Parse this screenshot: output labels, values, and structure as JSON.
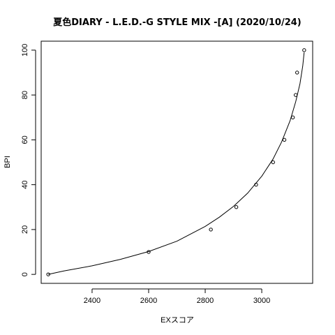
{
  "chart_data": {
    "type": "scatter",
    "title": "夏色DIARY - L.E.D.-G STYLE MIX -[A] (2020/10/24)",
    "xlabel": "EXスコア",
    "ylabel": "BPI",
    "xlim": [
      2220,
      3180
    ],
    "ylim": [
      -4,
      104
    ],
    "xticks": [
      2400,
      2600,
      2800,
      3000
    ],
    "yticks": [
      0,
      20,
      40,
      60,
      80,
      100
    ],
    "grid": false,
    "points": [
      {
        "x": 2245,
        "y": 0
      },
      {
        "x": 2600,
        "y": 10
      },
      {
        "x": 2820,
        "y": 20
      },
      {
        "x": 2910,
        "y": 30
      },
      {
        "x": 2980,
        "y": 40
      },
      {
        "x": 3040,
        "y": 50
      },
      {
        "x": 3080,
        "y": 60
      },
      {
        "x": 3110,
        "y": 70
      },
      {
        "x": 3120,
        "y": 80
      },
      {
        "x": 3125,
        "y": 90
      },
      {
        "x": 3150,
        "y": 100
      }
    ],
    "curve": [
      {
        "x": 2245,
        "y": 0
      },
      {
        "x": 2300,
        "y": 1.5
      },
      {
        "x": 2400,
        "y": 3.8
      },
      {
        "x": 2500,
        "y": 6.7
      },
      {
        "x": 2600,
        "y": 10.2
      },
      {
        "x": 2700,
        "y": 14.8
      },
      {
        "x": 2800,
        "y": 21.4
      },
      {
        "x": 2850,
        "y": 25.5
      },
      {
        "x": 2900,
        "y": 30.3
      },
      {
        "x": 2950,
        "y": 36.2
      },
      {
        "x": 3000,
        "y": 43.8
      },
      {
        "x": 3040,
        "y": 51.5
      },
      {
        "x": 3070,
        "y": 59
      },
      {
        "x": 3100,
        "y": 68.5
      },
      {
        "x": 3120,
        "y": 77
      },
      {
        "x": 3135,
        "y": 85
      },
      {
        "x": 3145,
        "y": 93
      },
      {
        "x": 3150,
        "y": 99
      }
    ]
  }
}
